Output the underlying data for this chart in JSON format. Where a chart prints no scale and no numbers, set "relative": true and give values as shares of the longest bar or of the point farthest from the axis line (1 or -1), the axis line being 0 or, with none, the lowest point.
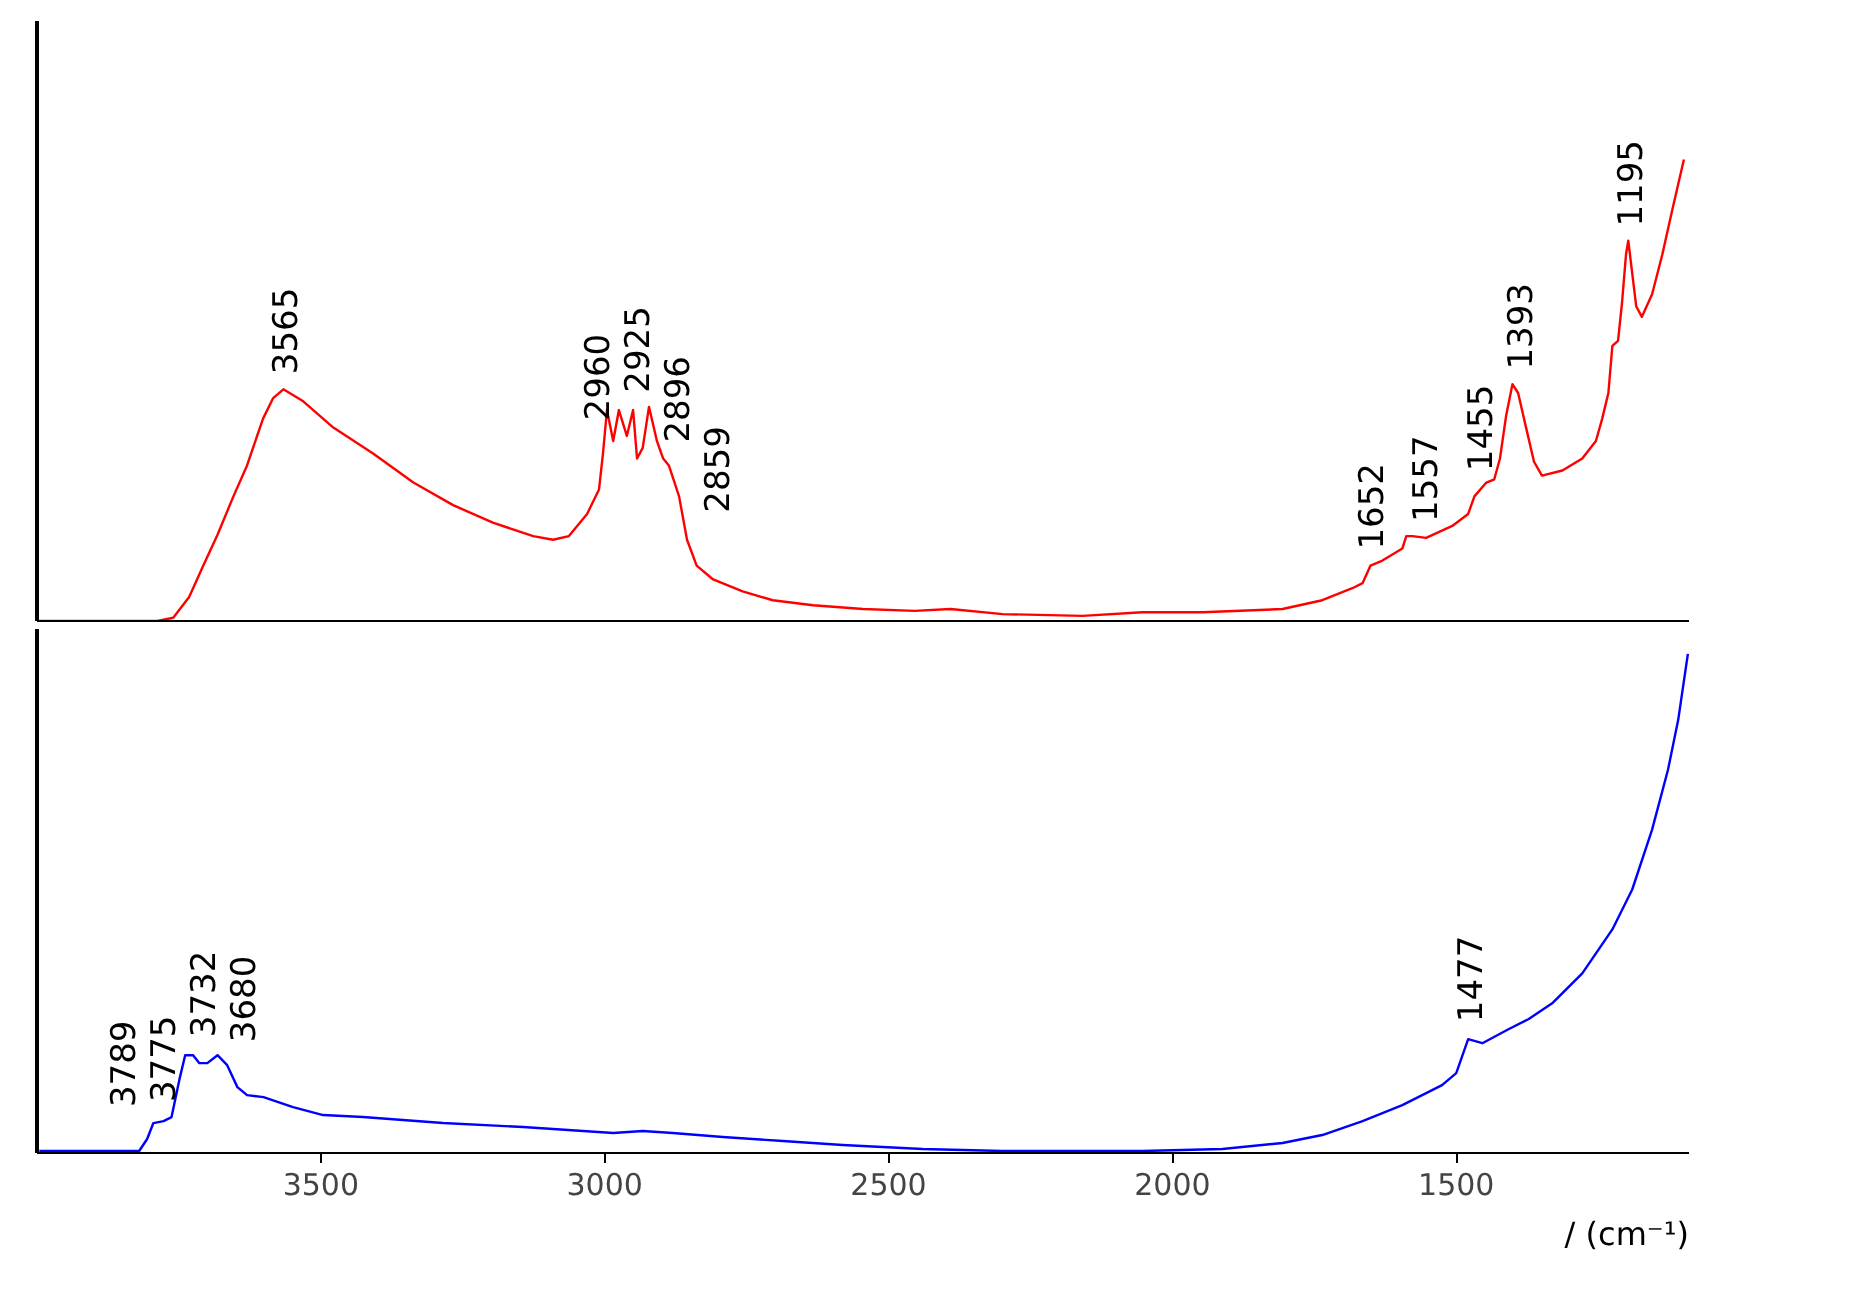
{
  "chart_data": [
    {
      "type": "line",
      "relative": true,
      "xlim": [
        4000,
        1090
      ],
      "tick_labels": false,
      "x": [
        3996,
        3788,
        3760,
        3732,
        3707,
        3682,
        3654,
        3630,
        3602,
        3584,
        3566,
        3531,
        3478,
        3408,
        3337,
        3267,
        3197,
        3126,
        3091,
        3063,
        3031,
        3010,
        3003,
        2996,
        2985,
        2975,
        2961,
        2950,
        2943,
        2933,
        2922,
        2908,
        2897,
        2887,
        2869,
        2855,
        2838,
        2809,
        2757,
        2704,
        2633,
        2545,
        2454,
        2391,
        2299,
        2158,
        2053,
        1947,
        1806,
        1736,
        1683,
        1665,
        1651,
        1630,
        1595,
        1588,
        1577,
        1553,
        1507,
        1479,
        1468,
        1447,
        1433,
        1423,
        1412,
        1401,
        1391,
        1377,
        1363,
        1349,
        1313,
        1278,
        1254,
        1243,
        1232,
        1225,
        1215,
        1208,
        1201,
        1197,
        1194,
        1183,
        1173,
        1155,
        1137,
        1120,
        1099
      ],
      "series": [
        {
          "color": "#ff0000",
          "values": [
            0,
            0,
            0.007,
            0.052,
            0.12,
            0.187,
            0.27,
            0.337,
            0.438,
            0.483,
            0.502,
            0.476,
            0.419,
            0.363,
            0.3,
            0.251,
            0.213,
            0.184,
            0.176,
            0.184,
            0.232,
            0.285,
            0.363,
            0.457,
            0.39,
            0.457,
            0.401,
            0.457,
            0.352,
            0.375,
            0.464,
            0.39,
            0.352,
            0.337,
            0.27,
            0.176,
            0.12,
            0.09,
            0.064,
            0.045,
            0.034,
            0.026,
            0.022,
            0.026,
            0.015,
            0.011,
            0.019,
            0.019,
            0.026,
            0.045,
            0.071,
            0.082,
            0.12,
            0.131,
            0.157,
            0.184,
            0.184,
            0.18,
            0.206,
            0.232,
            0.27,
            0.3,
            0.307,
            0.352,
            0.446,
            0.513,
            0.494,
            0.419,
            0.345,
            0.315,
            0.326,
            0.352,
            0.39,
            0.438,
            0.494,
            0.596,
            0.607,
            0.689,
            0.794,
            0.824,
            0.794,
            0.682,
            0.659,
            0.708,
            0.794,
            0.888,
            1
          ]
        }
      ],
      "annotations": [
        {
          "text": "3565",
          "x": 3565,
          "y": 0.5
        },
        {
          "text": "2960",
          "x": 2960,
          "y": 0.4
        },
        {
          "text": "2925",
          "x": 2925,
          "y": 0.46
        },
        {
          "text": "2896",
          "x": 2896,
          "y": 0.352
        },
        {
          "text": "2859",
          "x": 2859,
          "y": 0.2
        },
        {
          "text": "1652",
          "x": 1652,
          "y": 0.12
        },
        {
          "text": "1557",
          "x": 1557,
          "y": 0.18
        },
        {
          "text": "1455",
          "x": 1455,
          "y": 0.29
        },
        {
          "text": "1393",
          "x": 1393,
          "y": 0.51
        },
        {
          "text": "1195",
          "x": 1195,
          "y": 0.82
        }
      ]
    },
    {
      "type": "line",
      "relative": true,
      "xlim": [
        4000,
        1090
      ],
      "xticks": [
        3500,
        3000,
        2500,
        2000,
        1500
      ],
      "tick_labels": "x",
      "xlabel": "/ (cm⁻¹)",
      "x": [
        3996,
        3820,
        3806,
        3795,
        3777,
        3763,
        3749,
        3739,
        3725,
        3714,
        3700,
        3682,
        3665,
        3647,
        3630,
        3601,
        3549,
        3496,
        3426,
        3285,
        3144,
        3038,
        2985,
        2933,
        2880,
        2792,
        2686,
        2581,
        2440,
        2299,
        2053,
        1912,
        1806,
        1736,
        1665,
        1595,
        1560,
        1525,
        1500,
        1479,
        1454,
        1408,
        1373,
        1331,
        1278,
        1225,
        1190,
        1155,
        1127,
        1109,
        1092
      ],
      "series": [
        {
          "color": "#0000ff",
          "values": [
            0.004,
            0.004,
            0.028,
            0.06,
            0.064,
            0.072,
            0.148,
            0.196,
            0.196,
            0.18,
            0.18,
            0.196,
            0.176,
            0.132,
            0.116,
            0.112,
            0.092,
            0.076,
            0.072,
            0.06,
            0.052,
            0.044,
            0.04,
            0.044,
            0.04,
            0.032,
            0.024,
            0.016,
            0.008,
            0.004,
            0.004,
            0.008,
            0.02,
            0.036,
            0.064,
            0.096,
            0.116,
            0.136,
            0.16,
            0.228,
            0.22,
            0.248,
            0.268,
            0.3,
            0.36,
            0.448,
            0.528,
            0.648,
            0.768,
            0.868,
            1
          ]
        }
      ],
      "annotations": [
        {
          "text": "3789",
          "x": 3789,
          "y": 0.06
        },
        {
          "text": "3775",
          "x": 3775,
          "y": 0.07
        },
        {
          "text": "3732",
          "x": 3732,
          "y": 0.2
        },
        {
          "text": "3680",
          "x": 3680,
          "y": 0.19
        },
        {
          "text": "1477",
          "x": 1477,
          "y": 0.23
        }
      ]
    }
  ]
}
